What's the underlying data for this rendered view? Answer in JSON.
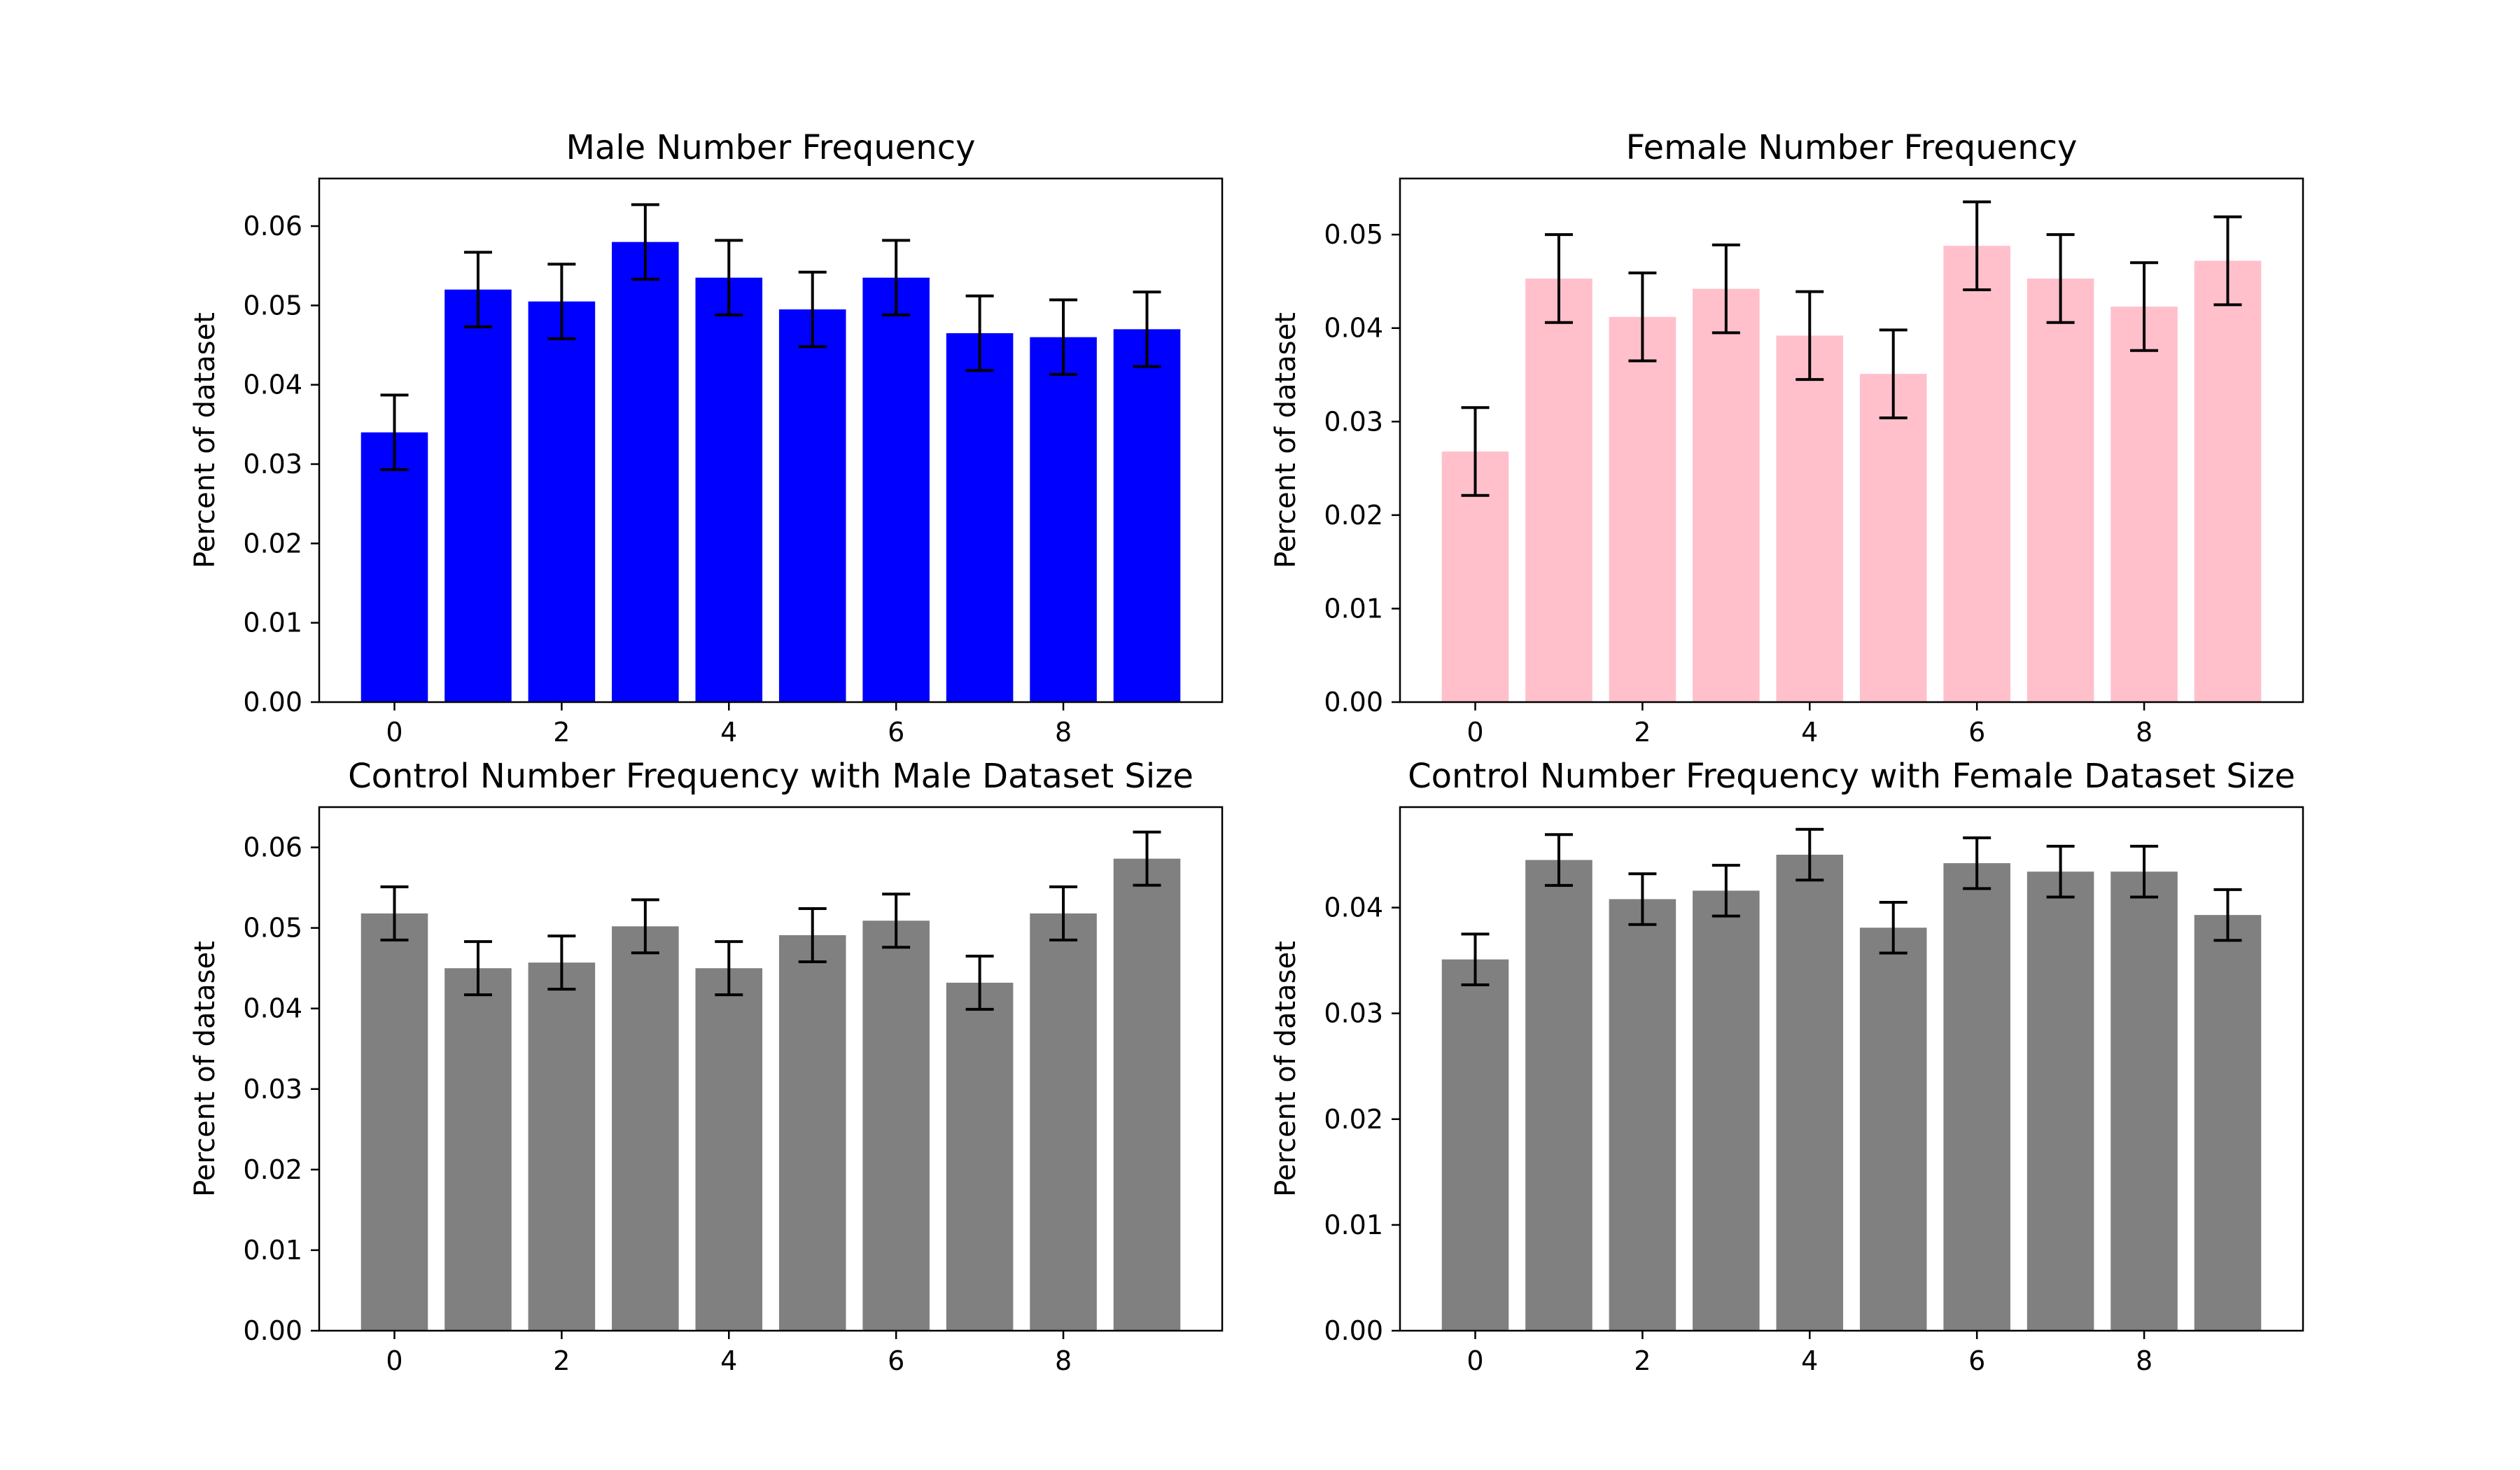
{
  "chart_data": [
    {
      "type": "bar",
      "title": "Male Number Frequency",
      "ylabel": "Percent of dataset",
      "xlabel": "",
      "bar_color": "#0000ff",
      "categories": [
        0,
        1,
        2,
        3,
        4,
        5,
        6,
        7,
        8,
        9
      ],
      "values": [
        0.034,
        0.052,
        0.0505,
        0.058,
        0.0535,
        0.0495,
        0.0535,
        0.0465,
        0.046,
        0.047
      ],
      "error": [
        0.0047,
        0.0047,
        0.0047,
        0.0047,
        0.0047,
        0.0047,
        0.0047,
        0.0047,
        0.0047,
        0.0047
      ],
      "xticks": [
        0,
        2,
        4,
        6,
        8
      ],
      "xlim": [
        -0.9,
        9.9
      ],
      "ylim": [
        0,
        0.066
      ],
      "yticks": [
        "0.00",
        "0.01",
        "0.02",
        "0.03",
        "0.04",
        "0.05",
        "0.06"
      ],
      "grid": false
    },
    {
      "type": "bar",
      "title": "Female Number Frequency",
      "ylabel": "Percent of dataset",
      "xlabel": "",
      "bar_color": "#ffc0cb",
      "categories": [
        0,
        1,
        2,
        3,
        4,
        5,
        6,
        7,
        8,
        9
      ],
      "values": [
        0.0268,
        0.0453,
        0.0412,
        0.0442,
        0.0392,
        0.0351,
        0.0488,
        0.0453,
        0.0423,
        0.0472
      ],
      "error": [
        0.0047,
        0.0047,
        0.0047,
        0.0047,
        0.0047,
        0.0047,
        0.0047,
        0.0047,
        0.0047,
        0.0047
      ],
      "xticks": [
        0,
        2,
        4,
        6,
        8
      ],
      "xlim": [
        -0.9,
        9.9
      ],
      "ylim": [
        0,
        0.056
      ],
      "yticks": [
        "0.00",
        "0.01",
        "0.02",
        "0.03",
        "0.04",
        "0.05"
      ],
      "grid": false
    },
    {
      "type": "bar",
      "title": "Control Number Frequency with Male Dataset Size",
      "ylabel": "Percent of dataset",
      "xlabel": "",
      "bar_color": "#808080",
      "categories": [
        0,
        1,
        2,
        3,
        4,
        5,
        6,
        7,
        8,
        9
      ],
      "values": [
        0.0518,
        0.045,
        0.0457,
        0.0502,
        0.045,
        0.0491,
        0.0509,
        0.0432,
        0.0518,
        0.0586
      ],
      "error": [
        0.0033,
        0.0033,
        0.0033,
        0.0033,
        0.0033,
        0.0033,
        0.0033,
        0.0033,
        0.0033,
        0.0033
      ],
      "xticks": [
        0,
        2,
        4,
        6,
        8
      ],
      "xlim": [
        -0.9,
        9.9
      ],
      "ylim": [
        0,
        0.065
      ],
      "yticks": [
        "0.00",
        "0.01",
        "0.02",
        "0.03",
        "0.04",
        "0.05",
        "0.06"
      ],
      "grid": false
    },
    {
      "type": "bar",
      "title": "Control Number Frequency with Female Dataset Size",
      "ylabel": "Percent of dataset",
      "xlabel": "",
      "bar_color": "#808080",
      "categories": [
        0,
        1,
        2,
        3,
        4,
        5,
        6,
        7,
        8,
        9
      ],
      "values": [
        0.0351,
        0.0445,
        0.0408,
        0.0416,
        0.045,
        0.0381,
        0.0442,
        0.0434,
        0.0434,
        0.0393
      ],
      "error": [
        0.0024,
        0.0024,
        0.0024,
        0.0024,
        0.0024,
        0.0024,
        0.0024,
        0.0024,
        0.0024,
        0.0024
      ],
      "xticks": [
        0,
        2,
        4,
        6,
        8
      ],
      "xlim": [
        -0.9,
        9.9
      ],
      "ylim": [
        0,
        0.0495
      ],
      "yticks": [
        "0.00",
        "0.01",
        "0.02",
        "0.03",
        "0.04"
      ],
      "grid": false
    }
  ]
}
